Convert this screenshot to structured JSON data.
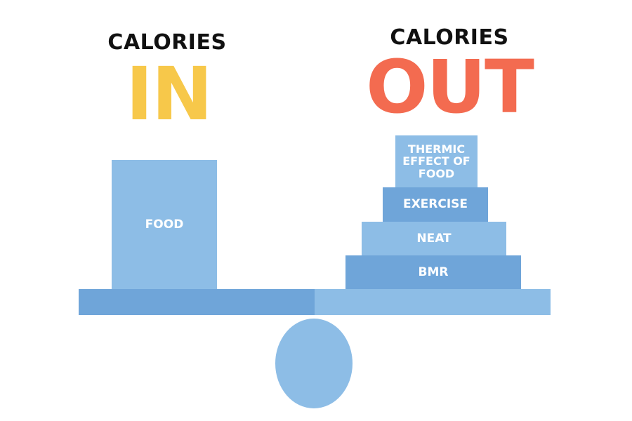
{
  "calories_in": {
    "label": "CALORIES",
    "word": "IN",
    "word_color": "#f7c84a"
  },
  "calories_out": {
    "label": "CALORIES",
    "word": "OUT",
    "word_color": "#f36b50"
  },
  "in_blocks": {
    "food": {
      "label": "FOOD",
      "color": "#8dbde6"
    }
  },
  "out_blocks": {
    "thermic_effect": {
      "label": "THERMIC EFFECT OF FOOD",
      "color": "#8dbde6"
    },
    "exercise": {
      "label": "EXERCISE",
      "color": "#6fa5d9"
    },
    "neat": {
      "label": "NEAT",
      "color": "#8dbde6"
    },
    "bmr": {
      "label": "BMR",
      "color": "#6fa5d9"
    }
  },
  "scale": {
    "beam_left_color": "#6fa5d9",
    "beam_right_color": "#8dbde6",
    "fulcrum_color": "#8dbde6"
  }
}
